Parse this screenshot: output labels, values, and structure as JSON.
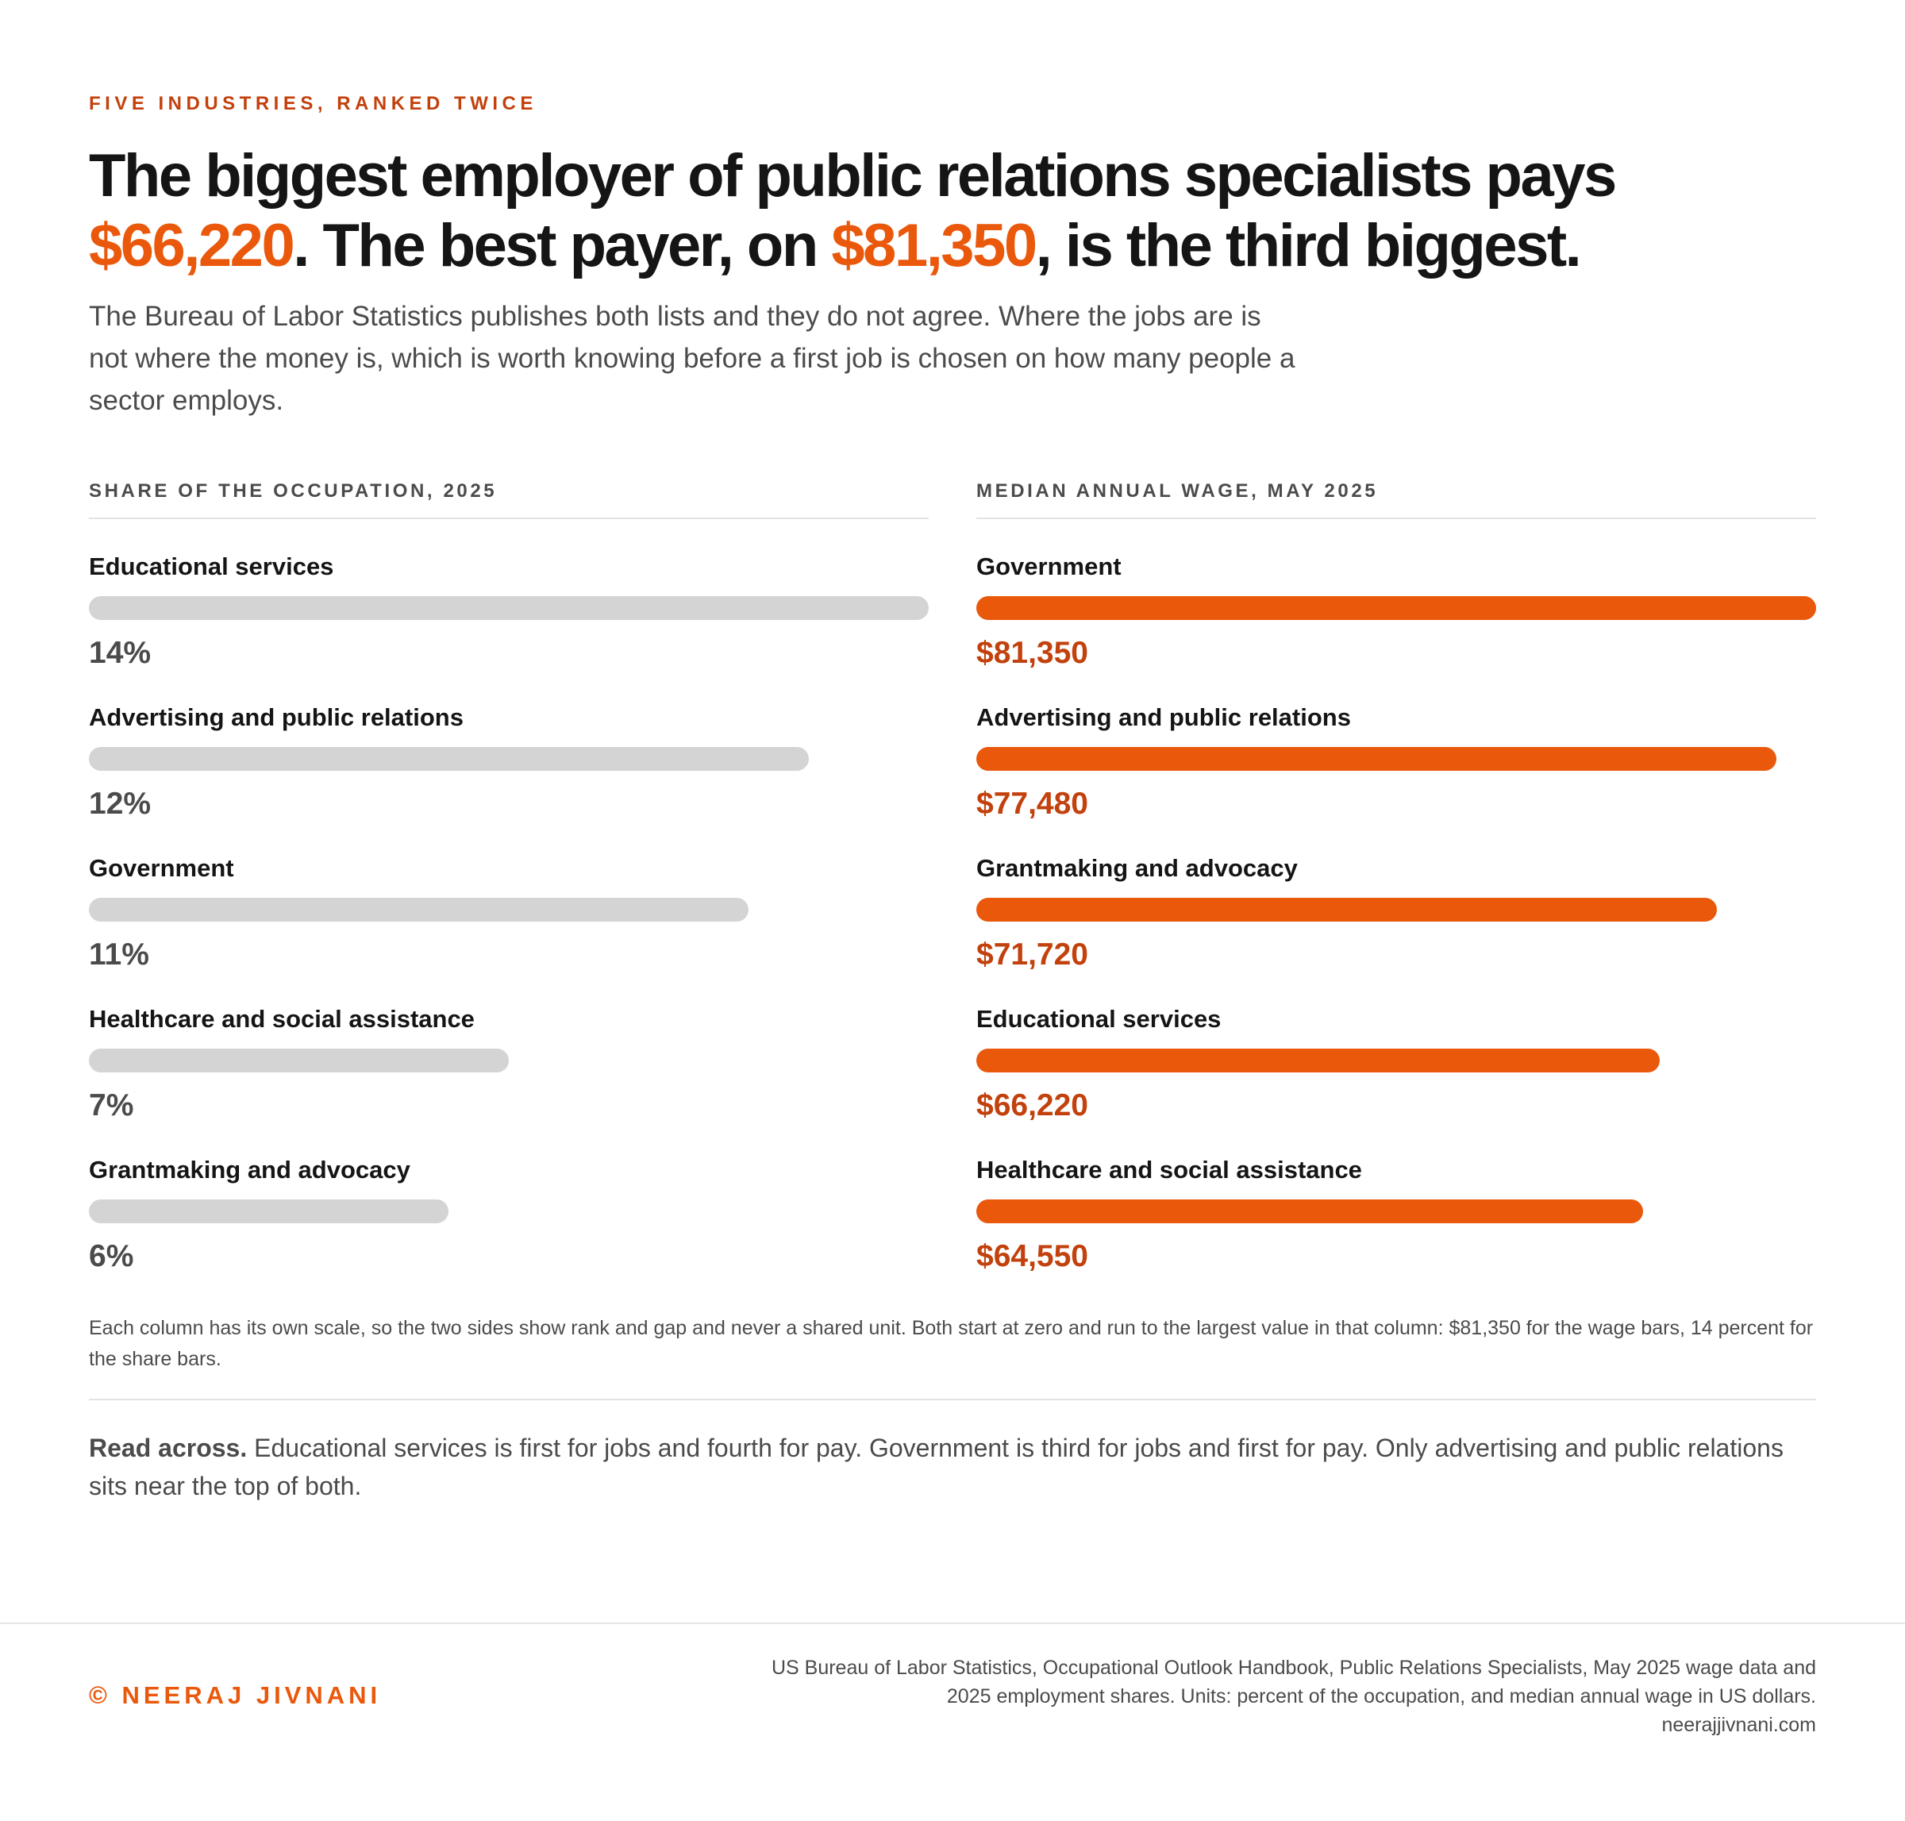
{
  "kicker": "FIVE INDUSTRIES, RANKED TWICE",
  "headline": {
    "part1": "The biggest employer of public relations specialists pays ",
    "hl1": "$66,220",
    "part2": ". The best payer, on ",
    "hl2": "$81,350",
    "part3": ", is the third biggest."
  },
  "dek": "The Bureau of Labor Statistics publishes both lists and they do not agree. Where the jobs are is not where the money is, which is worth knowing before a first job is chosen on how many people a sector employs.",
  "note": "Each column has its own scale, so the two sides show rank and gap and never a shared unit. Both start at zero and run to the largest value in that column: $81,350 for the wage bars, 14 percent for the share bars.",
  "read_across": {
    "lead": "Read across.",
    "text": " Educational services is first for jobs and fourth for pay. Government is third for jobs and first for pay. Only advertising and public relations sits near the top of both."
  },
  "footer": {
    "brand": "© NEERAJ JIVNANI",
    "source_line1": "US Bureau of Labor Statistics, Occupational Outlook Handbook, Public Relations Specialists, May 2025 wage data and",
    "source_line2": "2025 employment shares. Units: percent of the occupation, and median annual wage in US dollars.",
    "source_url": "neerajjivnani.com"
  },
  "colors": {
    "accent": "#ea580c",
    "accent_dark": "#c2410c",
    "share_bar": "#d4d4d4",
    "text": "#151515",
    "muted": "#4b4b4b"
  },
  "chart_data": [
    {
      "type": "bar",
      "orientation": "horizontal",
      "title": "SHARE OF THE OCCUPATION, 2025",
      "categories": [
        "Educational services",
        "Advertising and public relations",
        "Government",
        "Healthcare and social assistance",
        "Grantmaking and advocacy"
      ],
      "values": [
        14,
        12,
        11,
        7,
        6
      ],
      "value_labels": [
        "14%",
        "12%",
        "11%",
        "7%",
        "6%"
      ],
      "unit": "percent",
      "xlim": [
        0,
        14
      ]
    },
    {
      "type": "bar",
      "orientation": "horizontal",
      "title": "MEDIAN ANNUAL WAGE, MAY 2025",
      "categories": [
        "Government",
        "Advertising and public relations",
        "Grantmaking and advocacy",
        "Educational services",
        "Healthcare and social assistance"
      ],
      "values": [
        81350,
        77480,
        71720,
        66220,
        64550
      ],
      "value_labels": [
        "$81,350",
        "$77,480",
        "$71,720",
        "$66,220",
        "$64,550"
      ],
      "unit": "US dollars",
      "xlim": [
        0,
        81350
      ]
    }
  ]
}
